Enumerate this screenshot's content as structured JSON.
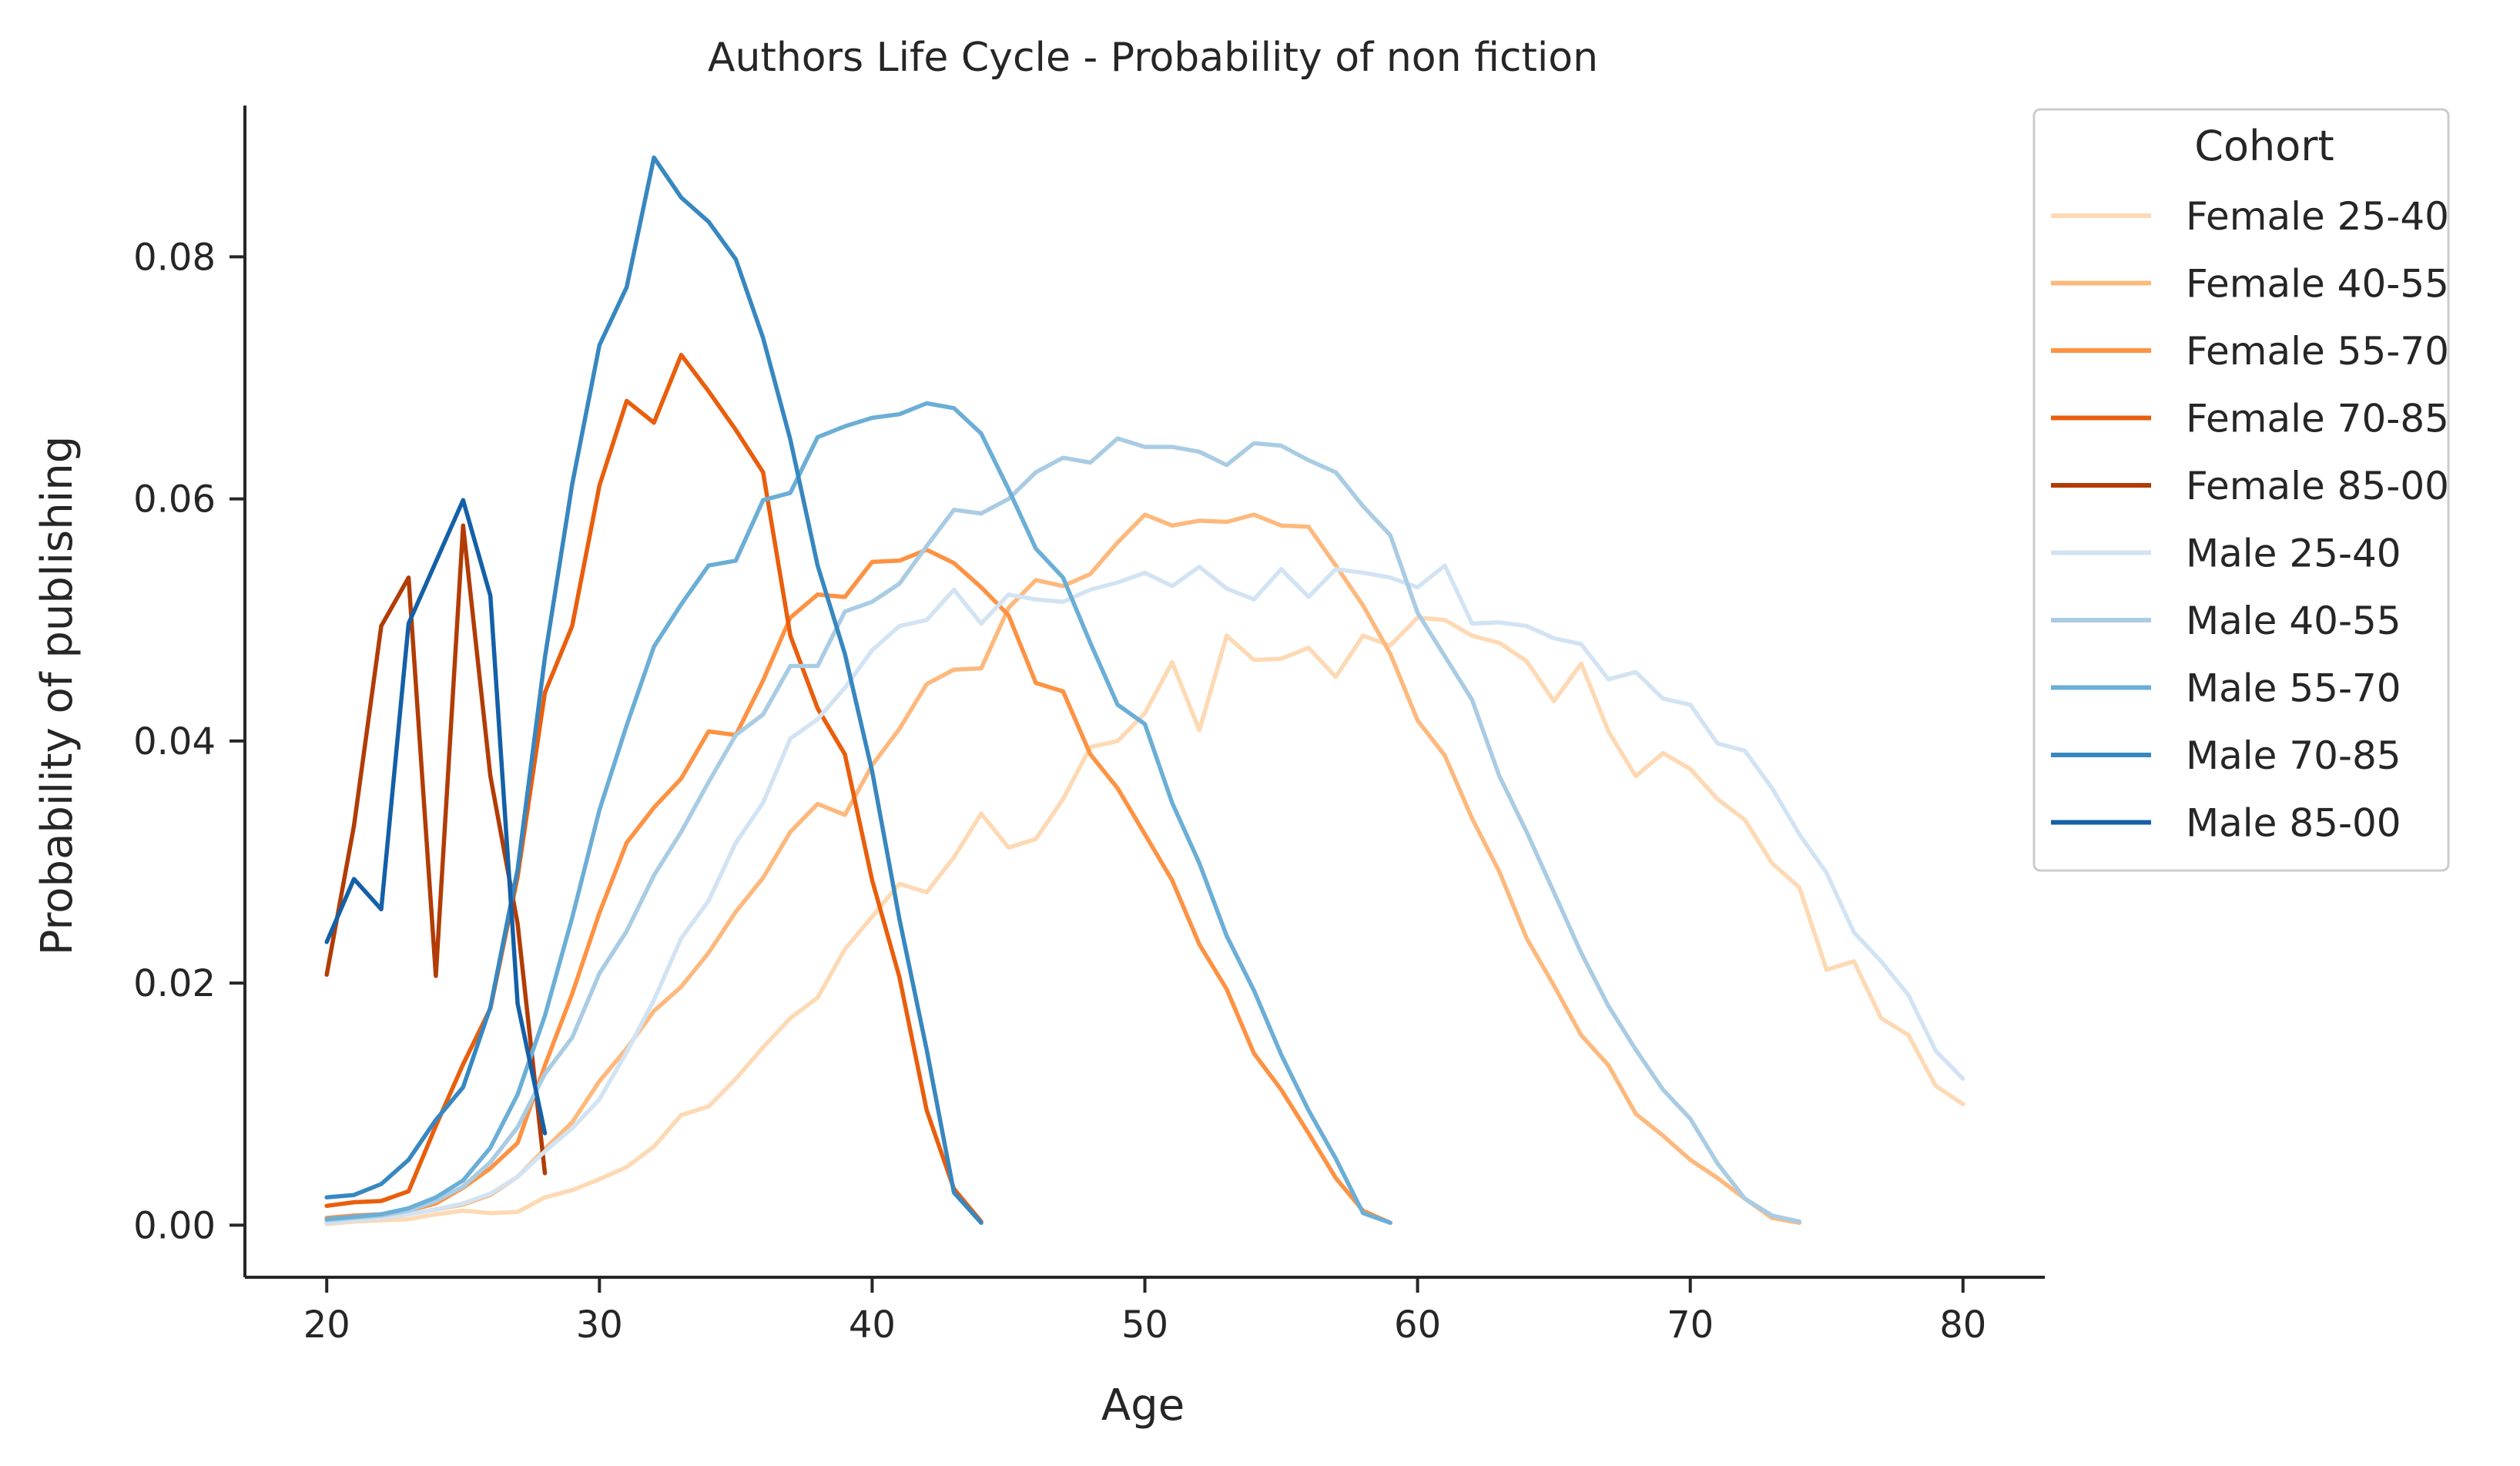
{
  "chart_data": {
    "type": "line",
    "title": "Authors Life Cycle - Probability of non fiction",
    "xlabel": "Age",
    "ylabel": "Probability of publishing",
    "xlim": [
      17,
      83
    ],
    "ylim": [
      -0.0043,
      0.0925
    ],
    "xticks": [
      20,
      30,
      40,
      50,
      60,
      70,
      80
    ],
    "yticks": [
      0.0,
      0.02,
      0.04,
      0.06,
      0.08
    ],
    "ytick_labels": [
      "0.00",
      "0.02",
      "0.04",
      "0.06",
      "0.08"
    ],
    "grid": false,
    "legend": {
      "title": "Cohort",
      "placement": "outside-right-top"
    },
    "series": [
      {
        "name": "Female 25-40",
        "color": "#fdd9b4",
        "x": [
          20,
          21,
          22,
          23,
          24,
          25,
          26,
          27,
          28,
          29,
          30,
          31,
          32,
          33,
          34,
          35,
          36,
          37,
          38,
          39,
          40,
          41,
          42,
          43,
          44,
          45,
          46,
          47,
          48,
          49,
          50,
          51,
          52,
          53,
          54,
          55,
          56,
          57,
          58,
          59,
          60,
          61,
          62,
          63,
          64,
          65,
          66,
          67,
          68,
          69,
          70,
          71,
          72,
          73,
          74,
          75,
          76,
          77,
          78,
          79,
          80
        ],
        "y": [
          0.0001,
          0.0003,
          0.0004,
          0.0005,
          0.0009,
          0.0012,
          0.001,
          0.0011,
          0.0023,
          0.0029,
          0.0038,
          0.0048,
          0.0065,
          0.0091,
          0.0098,
          0.0121,
          0.0147,
          0.0171,
          0.0188,
          0.0228,
          0.0255,
          0.0282,
          0.0275,
          0.0304,
          0.034,
          0.0312,
          0.0319,
          0.0352,
          0.0395,
          0.04,
          0.0423,
          0.0465,
          0.0409,
          0.0487,
          0.0467,
          0.0468,
          0.0477,
          0.0453,
          0.0487,
          0.0479,
          0.0502,
          0.05,
          0.0487,
          0.0481,
          0.0466,
          0.0433,
          0.0464,
          0.0408,
          0.0371,
          0.039,
          0.0377,
          0.0352,
          0.0335,
          0.0299,
          0.0279,
          0.0211,
          0.0218,
          0.0171,
          0.0157,
          0.0115,
          0.01
        ]
      },
      {
        "name": "Female 40-55",
        "color": "#fdb97d",
        "x": [
          20,
          21,
          22,
          23,
          24,
          25,
          26,
          27,
          28,
          29,
          30,
          31,
          32,
          33,
          34,
          35,
          36,
          37,
          38,
          39,
          40,
          41,
          42,
          43,
          44,
          45,
          46,
          47,
          48,
          49,
          50,
          51,
          52,
          53,
          54,
          55,
          56,
          57,
          58,
          59,
          60,
          61,
          62,
          63,
          64,
          65,
          66,
          67,
          68,
          69,
          70,
          71,
          72,
          73,
          74
        ],
        "y": [
          0.0003,
          0.0004,
          0.0006,
          0.0009,
          0.0013,
          0.0017,
          0.0025,
          0.004,
          0.0063,
          0.0085,
          0.0119,
          0.0146,
          0.0177,
          0.0197,
          0.0225,
          0.0259,
          0.0287,
          0.0325,
          0.0348,
          0.0339,
          0.038,
          0.041,
          0.0447,
          0.0459,
          0.046,
          0.051,
          0.0533,
          0.0528,
          0.0538,
          0.0564,
          0.0587,
          0.0578,
          0.0582,
          0.0581,
          0.0587,
          0.0578,
          0.0577,
          0.0545,
          0.0512,
          0.0472,
          0.0417,
          0.0388,
          0.0336,
          0.0292,
          0.0237,
          0.0198,
          0.0157,
          0.0132,
          0.0092,
          0.0074,
          0.0054,
          0.0039,
          0.0022,
          0.0006,
          0.0002
        ]
      },
      {
        "name": "Female 55-70",
        "color": "#fd9243",
        "x": [
          20,
          21,
          22,
          23,
          24,
          25,
          26,
          27,
          28,
          29,
          30,
          31,
          32,
          33,
          34,
          35,
          36,
          37,
          38,
          39,
          40,
          41,
          42,
          43,
          44,
          45,
          46,
          47,
          48,
          49,
          50,
          51,
          52,
          53,
          54,
          55,
          56,
          57,
          58,
          59
        ],
        "y": [
          0.0006,
          0.0008,
          0.0009,
          0.0012,
          0.0018,
          0.0031,
          0.0047,
          0.0068,
          0.0132,
          0.0191,
          0.0258,
          0.0316,
          0.0345,
          0.0369,
          0.0408,
          0.0405,
          0.045,
          0.0502,
          0.0521,
          0.0519,
          0.0548,
          0.0549,
          0.0558,
          0.0547,
          0.0527,
          0.0504,
          0.0448,
          0.0441,
          0.0389,
          0.0361,
          0.0323,
          0.0285,
          0.0232,
          0.0195,
          0.0142,
          0.0112,
          0.0076,
          0.0039,
          0.0012,
          0.0002
        ]
      },
      {
        "name": "Female 70-85",
        "color": "#e95e0d",
        "x": [
          20,
          21,
          22,
          23,
          24,
          25,
          26,
          27,
          28,
          29,
          30,
          31,
          32,
          33,
          34,
          35,
          36,
          37,
          38,
          39,
          40,
          41,
          42,
          43,
          44
        ],
        "y": [
          0.0016,
          0.0019,
          0.002,
          0.0028,
          0.0082,
          0.0133,
          0.0179,
          0.0288,
          0.044,
          0.0495,
          0.0611,
          0.0681,
          0.0663,
          0.0719,
          0.0689,
          0.0657,
          0.0622,
          0.0487,
          0.0427,
          0.0389,
          0.0285,
          0.0205,
          0.0095,
          0.003,
          0.0003
        ]
      },
      {
        "name": "Female 85-00",
        "color": "#b23c06",
        "x": [
          20,
          21,
          22,
          23,
          24,
          25,
          26,
          27,
          28
        ],
        "y": [
          0.0207,
          0.033,
          0.0495,
          0.0535,
          0.0206,
          0.0578,
          0.0371,
          0.0249,
          0.0043
        ]
      },
      {
        "name": "Male 25-40",
        "color": "#d2e3f3",
        "x": [
          20,
          21,
          22,
          23,
          24,
          25,
          26,
          27,
          28,
          29,
          30,
          31,
          32,
          33,
          34,
          35,
          36,
          37,
          38,
          39,
          40,
          41,
          42,
          43,
          44,
          45,
          46,
          47,
          48,
          49,
          50,
          51,
          52,
          53,
          54,
          55,
          56,
          57,
          58,
          59,
          60,
          61,
          62,
          63,
          64,
          65,
          66,
          67,
          68,
          69,
          70,
          71,
          72,
          73,
          74,
          75,
          76,
          77,
          78,
          79,
          80
        ],
        "y": [
          0.0002,
          0.0004,
          0.0006,
          0.0009,
          0.0013,
          0.0018,
          0.0026,
          0.004,
          0.0061,
          0.008,
          0.0104,
          0.0143,
          0.0186,
          0.0237,
          0.0268,
          0.0316,
          0.0349,
          0.0402,
          0.0418,
          0.0444,
          0.0475,
          0.0495,
          0.05,
          0.0525,
          0.0497,
          0.0521,
          0.0517,
          0.0515,
          0.0525,
          0.0531,
          0.0539,
          0.0528,
          0.0544,
          0.0526,
          0.0517,
          0.0542,
          0.0519,
          0.0542,
          0.0539,
          0.0535,
          0.0527,
          0.0545,
          0.0497,
          0.0498,
          0.0495,
          0.0485,
          0.048,
          0.0451,
          0.0457,
          0.0435,
          0.043,
          0.0398,
          0.0392,
          0.0361,
          0.0323,
          0.0291,
          0.0242,
          0.0218,
          0.019,
          0.0144,
          0.0121
        ]
      },
      {
        "name": "Male 40-55",
        "color": "#a9cce3",
        "x": [
          20,
          21,
          22,
          23,
          24,
          25,
          26,
          27,
          28,
          29,
          30,
          31,
          32,
          33,
          34,
          35,
          36,
          37,
          38,
          39,
          40,
          41,
          42,
          43,
          44,
          45,
          46,
          47,
          48,
          49,
          50,
          51,
          52,
          53,
          54,
          55,
          56,
          57,
          58,
          59,
          60,
          61,
          62,
          63,
          64,
          65,
          66,
          67,
          68,
          69,
          70,
          71,
          72,
          73,
          74
        ],
        "y": [
          0.0004,
          0.0006,
          0.0008,
          0.0012,
          0.002,
          0.0032,
          0.0052,
          0.0081,
          0.0125,
          0.0155,
          0.0208,
          0.0243,
          0.0289,
          0.0325,
          0.0366,
          0.0405,
          0.0422,
          0.0462,
          0.0462,
          0.0507,
          0.0515,
          0.053,
          0.0561,
          0.0591,
          0.0588,
          0.06,
          0.0622,
          0.0634,
          0.063,
          0.065,
          0.0643,
          0.0643,
          0.0639,
          0.0628,
          0.0646,
          0.0644,
          0.0632,
          0.0622,
          0.0594,
          0.057,
          0.0506,
          0.047,
          0.0434,
          0.0371,
          0.0325,
          0.0275,
          0.0225,
          0.0181,
          0.0145,
          0.0112,
          0.0088,
          0.0051,
          0.0022,
          0.0008,
          0.0003
        ]
      },
      {
        "name": "Male 55-70",
        "color": "#6baed6",
        "x": [
          20,
          21,
          22,
          23,
          24,
          25,
          26,
          27,
          28,
          29,
          30,
          31,
          32,
          33,
          34,
          35,
          36,
          37,
          38,
          39,
          40,
          41,
          42,
          43,
          44,
          45,
          46,
          47,
          48,
          49,
          50,
          51,
          52,
          53,
          54,
          55,
          56,
          57,
          58,
          59
        ],
        "y": [
          0.0005,
          0.0007,
          0.0009,
          0.0014,
          0.0023,
          0.0037,
          0.0064,
          0.0108,
          0.0173,
          0.0254,
          0.0343,
          0.0413,
          0.0478,
          0.0513,
          0.0545,
          0.0549,
          0.0599,
          0.0605,
          0.0651,
          0.066,
          0.0667,
          0.067,
          0.0679,
          0.0675,
          0.0654,
          0.0608,
          0.0559,
          0.0535,
          0.0481,
          0.043,
          0.0414,
          0.0349,
          0.0299,
          0.0239,
          0.0194,
          0.0141,
          0.0095,
          0.0055,
          0.001,
          0.0002
        ]
      },
      {
        "name": "Male 70-85",
        "color": "#3787c0",
        "x": [
          20,
          21,
          22,
          23,
          24,
          25,
          26,
          27,
          28,
          29,
          30,
          31,
          32,
          33,
          34,
          35,
          36,
          37,
          38,
          39,
          40,
          41,
          42,
          43,
          44
        ],
        "y": [
          0.0023,
          0.0025,
          0.0034,
          0.0054,
          0.0087,
          0.0114,
          0.018,
          0.0294,
          0.0469,
          0.0612,
          0.0727,
          0.0775,
          0.0882,
          0.0849,
          0.0829,
          0.0798,
          0.0733,
          0.0649,
          0.0545,
          0.0472,
          0.0375,
          0.0253,
          0.0145,
          0.0027,
          0.0002
        ]
      },
      {
        "name": "Male 85-00",
        "color": "#1460a8",
        "x": [
          20,
          21,
          22,
          23,
          24,
          25,
          26,
          27,
          28
        ],
        "y": [
          0.0234,
          0.0286,
          0.0261,
          0.0497,
          0.0548,
          0.0599,
          0.052,
          0.0183,
          0.0076
        ]
      }
    ]
  }
}
